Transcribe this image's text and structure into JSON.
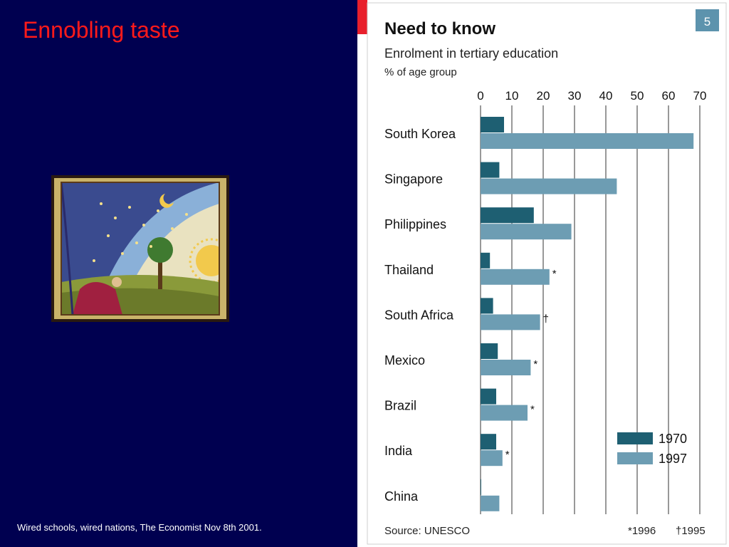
{
  "slide": {
    "title": "Ennobling taste",
    "caption": "Wired schools, wired nations, The Economist Nov 8th 2001."
  },
  "colors": {
    "background": "#000050",
    "title": "#ff1a1a",
    "accent_red": "#e8202c",
    "series_1970": "#1e5f72",
    "series_1997": "#6d9db3",
    "badge": "#5d93ad"
  },
  "chart_data": {
    "type": "bar",
    "orientation": "horizontal",
    "badge": "5",
    "title": "Need to know",
    "subtitle": "Enrolment in tertiary education",
    "unit_label": "% of age group",
    "x_ticks": [
      0,
      10,
      20,
      30,
      40,
      50,
      60,
      70
    ],
    "xlim": [
      0,
      70
    ],
    "grid": true,
    "legend_position": "bottom-right",
    "categories": [
      "South Korea",
      "Singapore",
      "Philippines",
      "Thailand",
      "South Africa",
      "Mexico",
      "Brazil",
      "India",
      "China"
    ],
    "series": [
      {
        "name": "1970",
        "values": [
          7.5,
          6,
          17,
          3,
          4,
          5.5,
          5,
          5,
          0.2
        ]
      },
      {
        "name": "1997",
        "values": [
          68,
          43.5,
          29,
          22,
          19,
          16,
          15,
          7,
          6
        ]
      }
    ],
    "annotations": [
      "",
      "",
      "",
      "*",
      "†",
      "*",
      "*",
      "*",
      ""
    ],
    "source": "Source: UNESCO",
    "footnotes": {
      "star": "*1996",
      "dagger": "†1995"
    }
  }
}
